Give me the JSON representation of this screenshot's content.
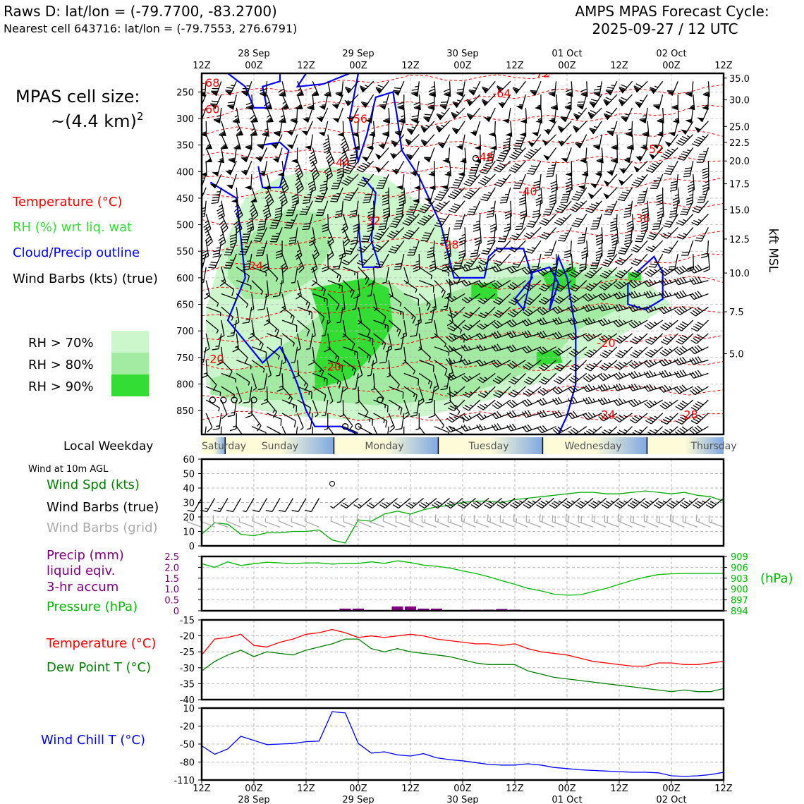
{
  "header": {
    "station": "Raws D: lat/lon = (-79.7700, -83.2700)",
    "nearest": "Nearest cell 643716: lat/lon = (-79.7553, 276.6791)",
    "cycle_line1": "AMPS MPAS Forecast Cycle:",
    "cycle_line2": "2025-09-27 / 12 UTC"
  },
  "sidebar": {
    "cell_size_line1": "MPAS cell size:",
    "cell_size_line2": "~(4.4 km)",
    "cell_size_exp": "2",
    "legend_temp": "Temperature (°C)",
    "legend_rh": "RH (%) wrt liq. wat",
    "legend_cloud": "Cloud/Precip outline",
    "legend_barbs": "Wind Barbs (kts) (true)",
    "rh70": "RH > 70%",
    "rh80": "RH > 80%",
    "rh90": "RH > 90%",
    "weekday_label": "Local Weekday",
    "wind10m": "Wind at 10m AGL",
    "wind_spd": "Wind Spd (kts)",
    "wind_barbs_true": "Wind Barbs (true)",
    "wind_barbs_grid": "Wind Barbs (grid)",
    "precip1": "Precip (mm)",
    "precip2": "liquid eqiv.",
    "precip3": "3-hr accum",
    "pressure": "Pressure (hPa)",
    "temp": "Temperature (°C)",
    "dewpt": "Dew Point T (°C)",
    "windchill": "Wind Chill T (°C)",
    "hpa_unit": "(hPa)",
    "kft_unit": "kft MSL"
  },
  "colors": {
    "temp": "#ff0000",
    "rh": "#33dd33",
    "cloud": "#0000ff",
    "rh70": "#ccf7cc",
    "rh80": "#a3eaa3",
    "rh90": "#33dd33",
    "precip": "#800080",
    "pressure": "#00aa00",
    "dew": "#008000",
    "grid_barb": "#aaaaaa"
  },
  "time_axis": {
    "top_ticks": [
      "12Z",
      "00Z",
      "12Z",
      "00Z",
      "12Z",
      "00Z",
      "12Z",
      "00Z",
      "12Z",
      "00Z",
      "12Z"
    ],
    "date_labels": [
      "28 Sep",
      "29 Sep",
      "30 Sep",
      "01 Oct",
      "02 Oct"
    ],
    "weekdays": [
      "Saturday",
      "Sunday",
      "Monday",
      "Tuesday",
      "Wednesday",
      "Thursday"
    ]
  },
  "chart_data": [
    {
      "type": "heatmap",
      "name": "time-height cross section",
      "y_pressure_ticks": [
        250,
        300,
        350,
        400,
        450,
        500,
        550,
        600,
        650,
        700,
        750,
        800,
        850
      ],
      "y_kft_ticks": [
        "35.0",
        "30.0",
        "25.0",
        "22.5",
        "20.0",
        "17.5",
        "15.0",
        "12.5",
        "10.0",
        "7.5",
        "5.0"
      ],
      "y_kft_pressure": [
        224,
        265,
        315,
        345,
        380,
        423,
        472,
        527,
        591,
        664,
        743
      ],
      "ylim_hpa": [
        215,
        895
      ],
      "xlim_hours": [
        0,
        120
      ],
      "temperature_contours": [
        {
          "label": "-68",
          "t": 2,
          "p": 240
        },
        {
          "label": "-60",
          "t": 2,
          "p": 290
        },
        {
          "label": "-72",
          "t": 78,
          "p": 222
        },
        {
          "label": "-64",
          "t": 69,
          "p": 260
        },
        {
          "label": "-56",
          "t": 36,
          "p": 308
        },
        {
          "label": "-48",
          "t": 65,
          "p": 380
        },
        {
          "label": "-44",
          "t": 32,
          "p": 390
        },
        {
          "label": "-40",
          "t": 75,
          "p": 445
        },
        {
          "label": "-52",
          "t": 104,
          "p": 365
        },
        {
          "label": "-36",
          "t": 101,
          "p": 495
        },
        {
          "label": "-32",
          "t": 39,
          "p": 500
        },
        {
          "label": "-28",
          "t": 57,
          "p": 545
        },
        {
          "label": "-24",
          "t": 12,
          "p": 585
        },
        {
          "label": "-20",
          "t": 3,
          "p": 760
        },
        {
          "label": "-20",
          "t": 30,
          "p": 775
        },
        {
          "label": "-20",
          "t": 93,
          "p": 730
        },
        {
          "label": "-24",
          "t": 93,
          "p": 865
        },
        {
          "label": "-28",
          "t": 112,
          "p": 865
        }
      ]
    },
    {
      "type": "line",
      "name": "wind speed 10m",
      "x": [
        0,
        3,
        6,
        9,
        12,
        15,
        18,
        21,
        24,
        27,
        30,
        33,
        36,
        39,
        42,
        45,
        48,
        51,
        54,
        57,
        60,
        63,
        66,
        69,
        72,
        75,
        78,
        81,
        84,
        87,
        90,
        93,
        96,
        99,
        102,
        105,
        108,
        111,
        114,
        117,
        120
      ],
      "values": [
        8,
        16,
        15,
        8,
        7,
        9,
        9,
        10,
        10,
        11,
        4,
        2,
        18,
        17,
        22,
        24,
        22,
        25,
        27,
        28,
        30,
        31,
        31,
        30,
        32,
        33,
        34,
        35,
        36,
        37,
        37,
        36,
        36,
        37,
        38,
        37,
        36,
        37,
        35,
        34,
        31
      ],
      "ylim": [
        0,
        60
      ],
      "yticks": [
        0,
        10,
        20,
        30,
        40,
        50,
        60
      ]
    },
    {
      "type": "line",
      "name": "pressure",
      "x": [
        0,
        3,
        6,
        9,
        12,
        15,
        18,
        21,
        24,
        27,
        30,
        33,
        36,
        39,
        42,
        45,
        48,
        51,
        54,
        57,
        60,
        63,
        66,
        69,
        72,
        75,
        78,
        81,
        84,
        87,
        90,
        93,
        96,
        99,
        102,
        105,
        108,
        111,
        114,
        117,
        120
      ],
      "values": [
        907,
        906,
        907.5,
        906.5,
        907,
        907.4,
        907.2,
        907,
        907.2,
        907.2,
        906.9,
        907.1,
        907.1,
        907.5,
        907.1,
        907.8,
        907.3,
        906.6,
        906.3,
        905.8,
        905,
        904.3,
        903.4,
        902.3,
        901.3,
        900.2,
        899.5,
        898.6,
        898.3,
        898.4,
        899.3,
        900.2,
        901.3,
        902.4,
        903.3,
        904,
        904.2,
        904.3,
        904.3,
        904.3,
        904.3
      ],
      "ylim": [
        894,
        909
      ],
      "yticks": [
        894,
        897,
        900,
        903,
        906,
        909
      ],
      "precip_mm": [
        0,
        0,
        0,
        0,
        0,
        0,
        0,
        0,
        0,
        0,
        0,
        0.1,
        0.1,
        0,
        0,
        0.2,
        0.2,
        0.1,
        0.1,
        0,
        0,
        0.05,
        0.05,
        0.08,
        0.05,
        0.02,
        0,
        0,
        0,
        0,
        0,
        0,
        0,
        0,
        0,
        0,
        0,
        0,
        0,
        0,
        0
      ],
      "precip_ylim": [
        0,
        2.5
      ],
      "precip_yticks": [
        0,
        0.5,
        1.0,
        1.5,
        2.0,
        2.5
      ]
    },
    {
      "type": "line",
      "name": "temperature and dew point",
      "x": [
        0,
        3,
        6,
        9,
        12,
        15,
        18,
        21,
        24,
        27,
        30,
        33,
        36,
        39,
        42,
        45,
        48,
        51,
        54,
        57,
        60,
        63,
        66,
        69,
        72,
        75,
        78,
        81,
        84,
        87,
        90,
        93,
        96,
        99,
        102,
        105,
        108,
        111,
        114,
        117,
        120
      ],
      "series": [
        {
          "name": "Temperature",
          "values": [
            -26,
            -21,
            -20.5,
            -19.5,
            -23,
            -23.5,
            -22,
            -21,
            -19.5,
            -19,
            -18,
            -19,
            -20.5,
            -20,
            -20.5,
            -20,
            -19.5,
            -20,
            -21,
            -21.5,
            -22,
            -22.5,
            -22.5,
            -23,
            -22.5,
            -24,
            -25,
            -25.5,
            -26,
            -27,
            -28,
            -28.5,
            -29,
            -29.5,
            -29.5,
            -28.5,
            -28.5,
            -29,
            -29,
            -28.5,
            -28
          ]
        },
        {
          "name": "Dew Point",
          "values": [
            -31,
            -28,
            -26,
            -24.5,
            -26.5,
            -25,
            -25.5,
            -26,
            -24.5,
            -23.5,
            -22.5,
            -21,
            -21,
            -24,
            -25,
            -24,
            -25,
            -25.5,
            -26,
            -26.5,
            -27.5,
            -28.5,
            -29,
            -29,
            -29,
            -31,
            -32,
            -33,
            -33.5,
            -34,
            -34.5,
            -35,
            -35.5,
            -36,
            -36.5,
            -37,
            -37.5,
            -37,
            -37.5,
            -37.5,
            -36.5
          ]
        }
      ],
      "ylim": [
        -40,
        -15
      ],
      "yticks": [
        -15,
        -20,
        -25,
        -30,
        -35,
        -40
      ]
    },
    {
      "type": "line",
      "name": "wind chill",
      "x": [
        0,
        3,
        6,
        9,
        12,
        15,
        18,
        21,
        24,
        27,
        30,
        33,
        36,
        39,
        42,
        45,
        48,
        51,
        54,
        57,
        60,
        63,
        66,
        69,
        72,
        75,
        78,
        81,
        84,
        87,
        90,
        93,
        96,
        99,
        102,
        105,
        108,
        111,
        114,
        117,
        120
      ],
      "values": [
        -53,
        -67,
        -58,
        -37,
        -44,
        -51,
        -50,
        -49,
        -46,
        -45,
        4,
        2,
        -49,
        -65,
        -63,
        -68,
        -70,
        -66,
        -73,
        -76,
        -78,
        -81,
        -84,
        -85,
        -85,
        -83,
        -85,
        -89,
        -91,
        -93,
        -94,
        -95,
        -96,
        -97,
        -97,
        -98,
        -103,
        -104,
        -103,
        -101,
        -97
      ],
      "ylim": [
        -110,
        10
      ],
      "yticks": [
        10,
        -20,
        -50,
        -80,
        -110
      ]
    }
  ]
}
